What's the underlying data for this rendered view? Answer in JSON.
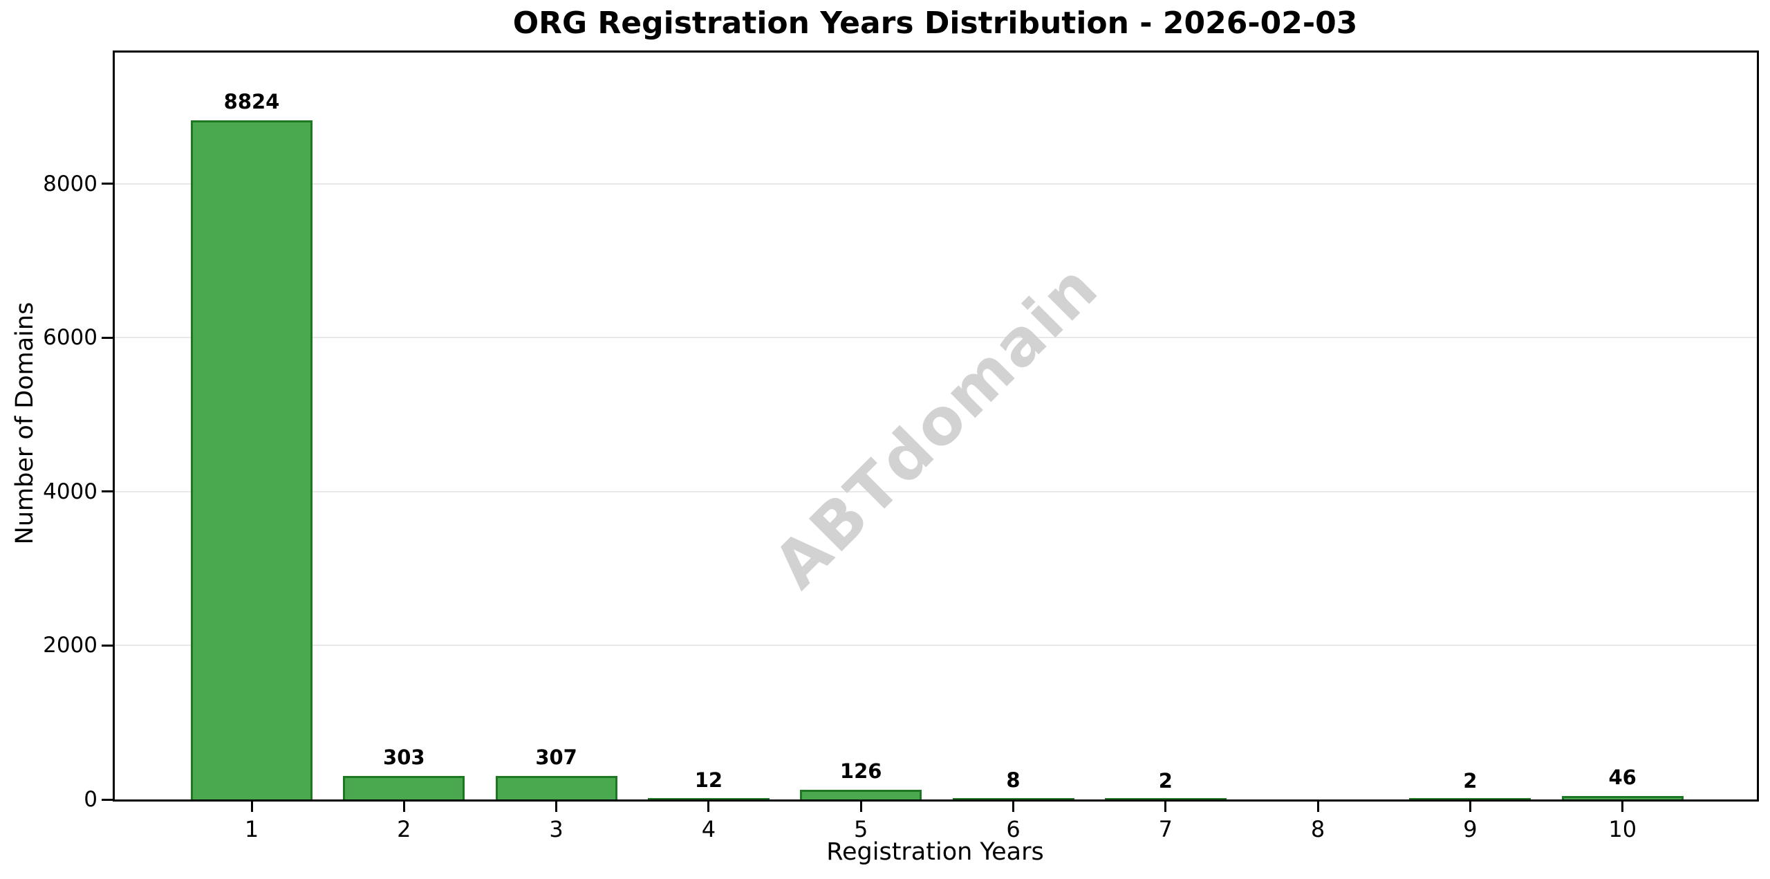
{
  "chart_data": {
    "type": "bar",
    "title": "ORG Registration Years Distribution - 2026-02-03",
    "xlabel": "Registration Years",
    "ylabel": "Number of Domains",
    "watermark": "ABTdomain",
    "categories": [
      "1",
      "2",
      "3",
      "4",
      "5",
      "6",
      "7",
      "8",
      "9",
      "10"
    ],
    "values": [
      8824,
      303,
      307,
      12,
      126,
      8,
      2,
      0,
      2,
      46
    ],
    "bar_labels": [
      "8824",
      "303",
      "307",
      "12",
      "126",
      "8",
      "2",
      "",
      "2",
      "46"
    ],
    "yticks": [
      0,
      2000,
      4000,
      6000,
      8000
    ],
    "ylim": [
      0,
      9706
    ],
    "grid": "horizontal",
    "legend_position": "none",
    "colors": {
      "bar_fill": "#4aa84e",
      "bar_edge": "#1e7823",
      "grid": "#e8e8e8",
      "axis": "#000000",
      "watermark": "#d2d2d2",
      "background": "#ffffff",
      "text": "#000000"
    }
  }
}
